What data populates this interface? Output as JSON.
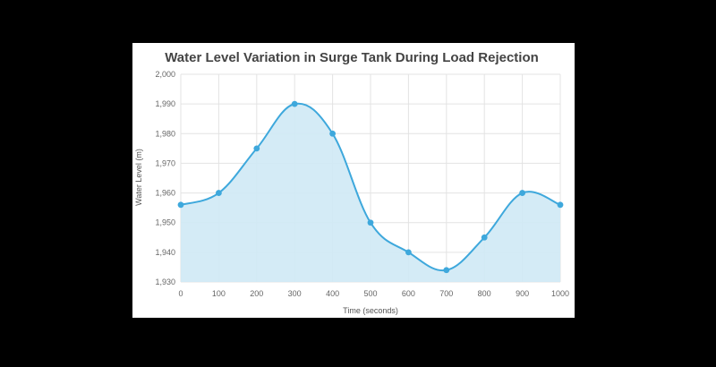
{
  "chart_data": {
    "type": "area",
    "title": "Water Level Variation in Surge Tank During Load Rejection",
    "xlabel": "Time (seconds)",
    "ylabel": "Water Level (m)",
    "x": [
      0,
      100,
      200,
      300,
      400,
      500,
      600,
      700,
      800,
      900,
      1000
    ],
    "x_tick_labels": [
      "0",
      "100",
      "200",
      "300",
      "400",
      "500",
      "600",
      "700",
      "800",
      "900",
      "1000"
    ],
    "y_tick_labels": [
      "2,000",
      "1,990",
      "1,980",
      "1,970",
      "1,960",
      "1,950",
      "1,940",
      "1,930"
    ],
    "series": [
      {
        "values": [
          1956,
          1960,
          1975,
          1990,
          1980,
          1950,
          1940,
          1934,
          1945,
          1960,
          1956
        ]
      }
    ],
    "xlim": [
      0,
      1000
    ],
    "ylim": [
      1930,
      2000
    ],
    "grid": true,
    "colors": {
      "line": "#3ea8dc",
      "fill": "#cfe9f5",
      "marker": "#3ea8dc"
    }
  }
}
